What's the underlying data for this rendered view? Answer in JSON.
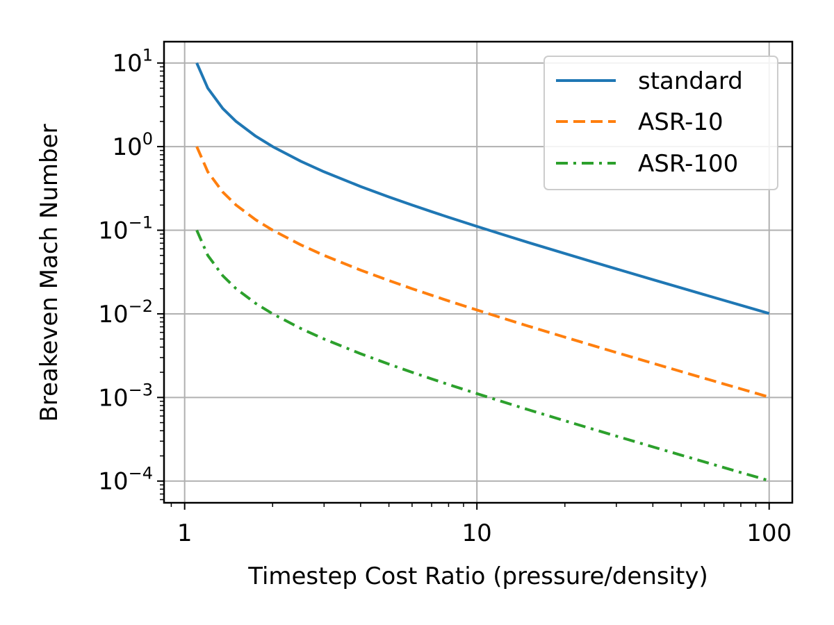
{
  "chart_data": {
    "type": "line",
    "title": "",
    "xlabel": "Timestep Cost Ratio (pressure/density)",
    "ylabel": "Breakeven Mach Number",
    "xscale": "log",
    "yscale": "log",
    "xlim": [
      0.85,
      120
    ],
    "ylim": [
      5.5e-05,
      18
    ],
    "grid": true,
    "legend_loc": "upper right",
    "x_ticks": [
      {
        "value": 1,
        "label": "1"
      },
      {
        "value": 10,
        "label": "10"
      },
      {
        "value": 100,
        "label": "100"
      }
    ],
    "y_ticks": [
      {
        "value": 10,
        "base": "10",
        "exp": "1"
      },
      {
        "value": 1,
        "base": "10",
        "exp": "0"
      },
      {
        "value": 0.1,
        "base": "10",
        "exp": "−1"
      },
      {
        "value": 0.01,
        "base": "10",
        "exp": "−2"
      },
      {
        "value": 0.001,
        "base": "10",
        "exp": "−3"
      },
      {
        "value": 0.0001,
        "base": "10",
        "exp": "−4"
      }
    ],
    "x": [
      1.1,
      1.2,
      1.35,
      1.5,
      1.75,
      2,
      2.5,
      3,
      4,
      5,
      6,
      7,
      8,
      10,
      12,
      15,
      20,
      25,
      30,
      40,
      50,
      60,
      70,
      80,
      90,
      100
    ],
    "series": [
      {
        "name": "standard",
        "color": "#1f77b4",
        "dash": "solid",
        "values": [
          10,
          5,
          2.857,
          2,
          1.333,
          1,
          0.667,
          0.5,
          0.3333,
          0.25,
          0.2,
          0.1667,
          0.1429,
          0.1111,
          0.0909,
          0.0714,
          0.05263,
          0.04167,
          0.03448,
          0.02564,
          0.02041,
          0.01695,
          0.01449,
          0.01266,
          0.01124,
          0.0101
        ]
      },
      {
        "name": "ASR-10",
        "color": "#ff7f0e",
        "dash": "dashed",
        "values": [
          1,
          0.5,
          0.2857,
          0.2,
          0.1333,
          0.1,
          0.0667,
          0.05,
          0.03333,
          0.025,
          0.02,
          0.01667,
          0.01429,
          0.01111,
          0.00909,
          0.00714,
          0.005263,
          0.004167,
          0.003448,
          0.002564,
          0.002041,
          0.001695,
          0.001449,
          0.001266,
          0.001124,
          0.00101
        ]
      },
      {
        "name": "ASR-100",
        "color": "#2ca02c",
        "dash": "dashdot",
        "values": [
          0.1,
          0.05,
          0.02857,
          0.02,
          0.01333,
          0.01,
          0.00667,
          0.005,
          0.003333,
          0.0025,
          0.002,
          0.001667,
          0.001429,
          0.001111,
          0.000909,
          0.000714,
          0.0005263,
          0.0004167,
          0.0003448,
          0.0002564,
          0.0002041,
          0.0001695,
          0.0001449,
          0.0001266,
          0.0001124,
          0.000101
        ]
      }
    ]
  }
}
